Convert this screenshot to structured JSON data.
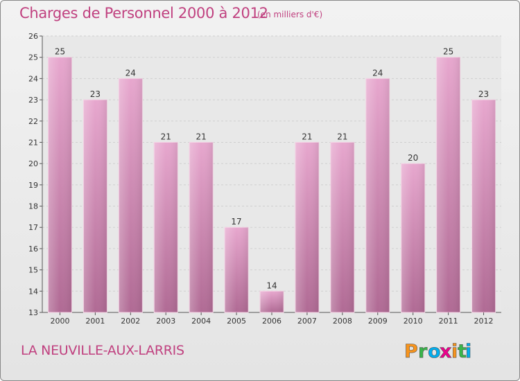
{
  "header": {
    "title": "Charges de Personnel 2000 à 2012",
    "subtitle": "(en milliers d'€)"
  },
  "footer": {
    "town": "LA NEUVILLE-AUX-LARRIS",
    "logo_text": "Proxiti",
    "logo_letters": [
      "P",
      "r",
      "o",
      "x",
      "i",
      "t",
      "i"
    ],
    "logo_colors": [
      "#f7941d",
      "#39b54a",
      "#00aeef",
      "#ec008c",
      "#f7941d",
      "#39b54a",
      "#00aeef"
    ]
  },
  "colors": {
    "bar_top": "#e7a7ce",
    "bar_bottom": "#b06a94",
    "accent": "#c0407f"
  },
  "chart_data": {
    "type": "bar",
    "categories": [
      "2000",
      "2001",
      "2002",
      "2003",
      "2004",
      "2005",
      "2006",
      "2007",
      "2008",
      "2009",
      "2010",
      "2011",
      "2012"
    ],
    "values": [
      25,
      23,
      24,
      21,
      21,
      17,
      14,
      21,
      21,
      24,
      20,
      25,
      23
    ],
    "ylim": [
      13,
      26
    ],
    "yticks": [
      13,
      14,
      15,
      16,
      17,
      18,
      19,
      20,
      21,
      22,
      23,
      24,
      25,
      26
    ],
    "grid": true,
    "data_labels": true
  }
}
